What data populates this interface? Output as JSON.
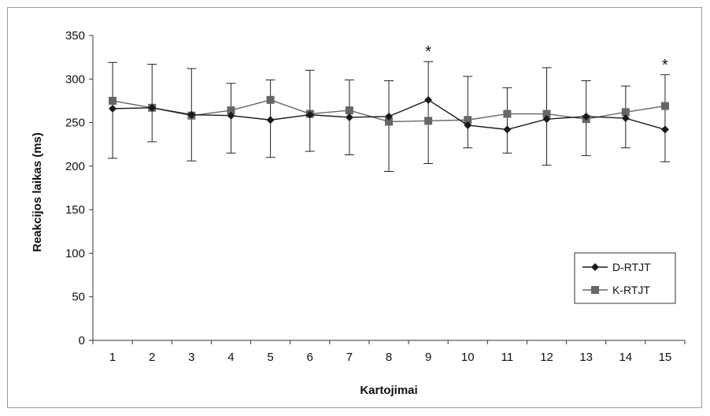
{
  "chart_data": {
    "type": "line",
    "title": "",
    "xlabel": "Kartojimai",
    "ylabel": "Reakcijos laikas (ms)",
    "ylim": [
      0,
      350
    ],
    "yticks": [
      0,
      50,
      100,
      150,
      200,
      250,
      300,
      350
    ],
    "categories": [
      "1",
      "2",
      "3",
      "4",
      "5",
      "6",
      "7",
      "8",
      "9",
      "10",
      "11",
      "12",
      "13",
      "14",
      "15"
    ],
    "series": [
      {
        "name": "D-RTJT",
        "marker": "diamond",
        "color": "#1a1a1a",
        "values": [
          266,
          267,
          259,
          258,
          253,
          259,
          256,
          257,
          276,
          247,
          242,
          254,
          257,
          255,
          242
        ],
        "err_low": [
          209,
          228,
          206,
          215,
          210,
          217,
          213,
          194,
          203,
          221,
          215,
          201,
          212,
          221,
          205
        ],
        "err_high": [
          319,
          317,
          312,
          295,
          299,
          310,
          299,
          298,
          320,
          303,
          290,
          313,
          298,
          292,
          305
        ]
      },
      {
        "name": "K-RTJT",
        "marker": "square",
        "color": "#666666",
        "values": [
          275,
          267,
          258,
          264,
          276,
          260,
          264,
          251,
          252,
          253,
          260,
          260,
          254,
          262,
          269
        ],
        "err_low": [],
        "err_high": []
      }
    ],
    "annotations": [
      {
        "x": "9",
        "text": "*"
      },
      {
        "x": "15",
        "text": "*"
      }
    ],
    "grid": false,
    "legend_position": "right"
  }
}
